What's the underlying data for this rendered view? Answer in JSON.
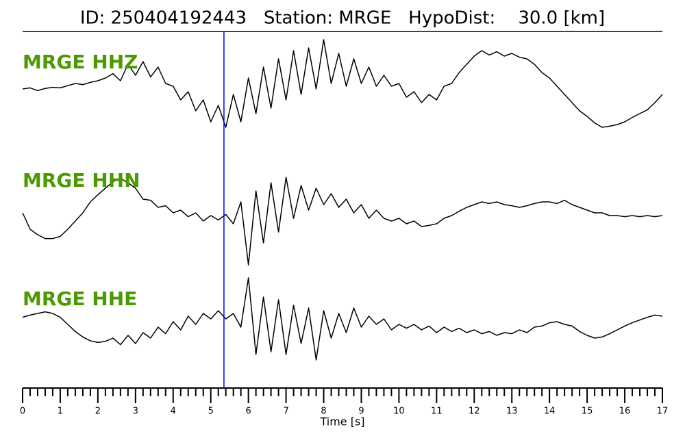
{
  "chart_data": {
    "type": "waveform",
    "title": "ID: 250404192443   Station: MRGE   HypoDist:    30.0 [km]",
    "xlabel": "Time [s]",
    "xlim": [
      0,
      17
    ],
    "xticks": [
      0,
      1,
      2,
      3,
      4,
      5,
      6,
      7,
      8,
      9,
      10,
      11,
      12,
      13,
      14,
      15,
      16,
      17
    ],
    "xminorticks": [
      0.2,
      0.4,
      0.6,
      0.8,
      1.2,
      1.4,
      1.6,
      1.8,
      2.2,
      2.4,
      2.6,
      2.8,
      3.2,
      3.4,
      3.6,
      3.8,
      4.2,
      4.4,
      4.6,
      4.8,
      5.2,
      5.4,
      5.6,
      5.8,
      6.2,
      6.4,
      6.6,
      6.8,
      7.2,
      7.4,
      7.6,
      7.8,
      8.2,
      8.4,
      8.6,
      8.8,
      9.2,
      9.4,
      9.6,
      9.8,
      10.2,
      10.4,
      10.6,
      10.8,
      11.2,
      11.4,
      11.6,
      11.8,
      12.2,
      12.4,
      12.6,
      12.8,
      13.2,
      13.4,
      13.6,
      13.8,
      14.2,
      14.4,
      14.6,
      14.8,
      15.2,
      15.4,
      15.6,
      15.8,
      16.2,
      16.4,
      16.6,
      16.8
    ],
    "label_color": "#4c9a00",
    "pick": {
      "x": 5.35,
      "color": "#0000ff"
    },
    "x": [
      0,
      0.2,
      0.4,
      0.6,
      0.8,
      1,
      1.2,
      1.4,
      1.6,
      1.8,
      2,
      2.2,
      2.4,
      2.6,
      2.8,
      3,
      3.2,
      3.4,
      3.6,
      3.8,
      4,
      4.2,
      4.4,
      4.6,
      4.8,
      5,
      5.2,
      5.4,
      5.6,
      5.8,
      6,
      6.2,
      6.4,
      6.6,
      6.8,
      7,
      7.2,
      7.4,
      7.6,
      7.8,
      8,
      8.2,
      8.4,
      8.6,
      8.8,
      9,
      9.2,
      9.4,
      9.6,
      9.8,
      10,
      10.2,
      10.4,
      10.6,
      10.8,
      11,
      11.2,
      11.4,
      11.6,
      11.8,
      12,
      12.2,
      12.4,
      12.6,
      12.8,
      13,
      13.2,
      13.4,
      13.6,
      13.8,
      14,
      14.2,
      14.4,
      14.6,
      14.8,
      15,
      15.2,
      15.4,
      15.6,
      15.8,
      16,
      16.2,
      16.4,
      16.6,
      16.8,
      17
    ],
    "series": [
      {
        "name": "MRGE HHZ",
        "color": "#000000",
        "values": [
          0,
          0.02,
          -0.03,
          0.01,
          0.03,
          0.02,
          0.06,
          0.1,
          0.08,
          0.12,
          0.15,
          0.2,
          0.28,
          0.15,
          0.45,
          0.25,
          0.5,
          0.22,
          0.4,
          0.1,
          0.05,
          -0.2,
          -0.05,
          -0.4,
          -0.2,
          -0.6,
          -0.3,
          -0.7,
          -0.1,
          -0.6,
          0.2,
          -0.45,
          0.4,
          -0.35,
          0.55,
          -0.2,
          0.7,
          -0.1,
          0.75,
          0,
          0.9,
          0.1,
          0.65,
          0.05,
          0.55,
          0.1,
          0.4,
          0.05,
          0.25,
          0.05,
          0.1,
          -0.15,
          -0.05,
          -0.25,
          -0.1,
          -0.2,
          0.05,
          0.1,
          0.3,
          0.45,
          0.6,
          0.7,
          0.62,
          0.68,
          0.6,
          0.65,
          0.58,
          0.55,
          0.45,
          0.3,
          0.2,
          0.05,
          -0.1,
          -0.25,
          -0.4,
          -0.5,
          -0.62,
          -0.7,
          -0.68,
          -0.65,
          -0.6,
          -0.52,
          -0.45,
          -0.38,
          -0.25,
          -0.1
        ]
      },
      {
        "name": "MRGE HHN",
        "color": "#000000",
        "values": [
          0.05,
          -0.25,
          -0.35,
          -0.42,
          -0.42,
          -0.38,
          -0.25,
          -0.1,
          0.05,
          0.25,
          0.38,
          0.5,
          0.62,
          0.68,
          0.6,
          0.5,
          0.3,
          0.28,
          0.15,
          0.18,
          0.05,
          0.1,
          -0.02,
          0.05,
          -0.1,
          0,
          -0.08,
          0.02,
          -0.15,
          0.25,
          -0.9,
          0.45,
          -0.5,
          0.6,
          -0.3,
          0.7,
          -0.05,
          0.55,
          0.1,
          0.5,
          0.2,
          0.4,
          0.15,
          0.3,
          0.05,
          0.2,
          -0.05,
          0.1,
          -0.05,
          -0.1,
          -0.05,
          -0.15,
          -0.1,
          -0.2,
          -0.18,
          -0.15,
          -0.05,
          0,
          0.08,
          0.15,
          0.2,
          0.25,
          0.22,
          0.25,
          0.2,
          0.18,
          0.15,
          0.18,
          0.22,
          0.25,
          0.25,
          0.22,
          0.28,
          0.2,
          0.15,
          0.1,
          0.05,
          0.05,
          0,
          0,
          -0.02,
          0,
          -0.02,
          0,
          -0.02,
          0
        ]
      },
      {
        "name": "MRGE HHE",
        "color": "#000000",
        "values": [
          0.08,
          0.12,
          0.15,
          0.18,
          0.15,
          0.08,
          -0.05,
          -0.18,
          -0.28,
          -0.35,
          -0.38,
          -0.36,
          -0.3,
          -0.42,
          -0.25,
          -0.4,
          -0.2,
          -0.3,
          -0.1,
          -0.22,
          0,
          -0.15,
          0.1,
          -0.05,
          0.15,
          0.05,
          0.2,
          0.05,
          0.15,
          -0.1,
          0.8,
          -0.6,
          0.45,
          -0.55,
          0.4,
          -0.6,
          0.3,
          -0.4,
          0.25,
          -0.7,
          0.2,
          -0.3,
          0.15,
          -0.2,
          0.25,
          -0.1,
          0.1,
          -0.05,
          0.05,
          -0.15,
          -0.05,
          -0.12,
          -0.05,
          -0.15,
          -0.08,
          -0.2,
          -0.1,
          -0.18,
          -0.12,
          -0.2,
          -0.15,
          -0.22,
          -0.18,
          -0.25,
          -0.2,
          -0.22,
          -0.15,
          -0.2,
          -0.1,
          -0.08,
          -0.02,
          0,
          -0.05,
          -0.08,
          -0.18,
          -0.25,
          -0.3,
          -0.28,
          -0.22,
          -0.15,
          -0.08,
          -0.02,
          0.03,
          0.08,
          0.12,
          0.1
        ]
      }
    ]
  }
}
